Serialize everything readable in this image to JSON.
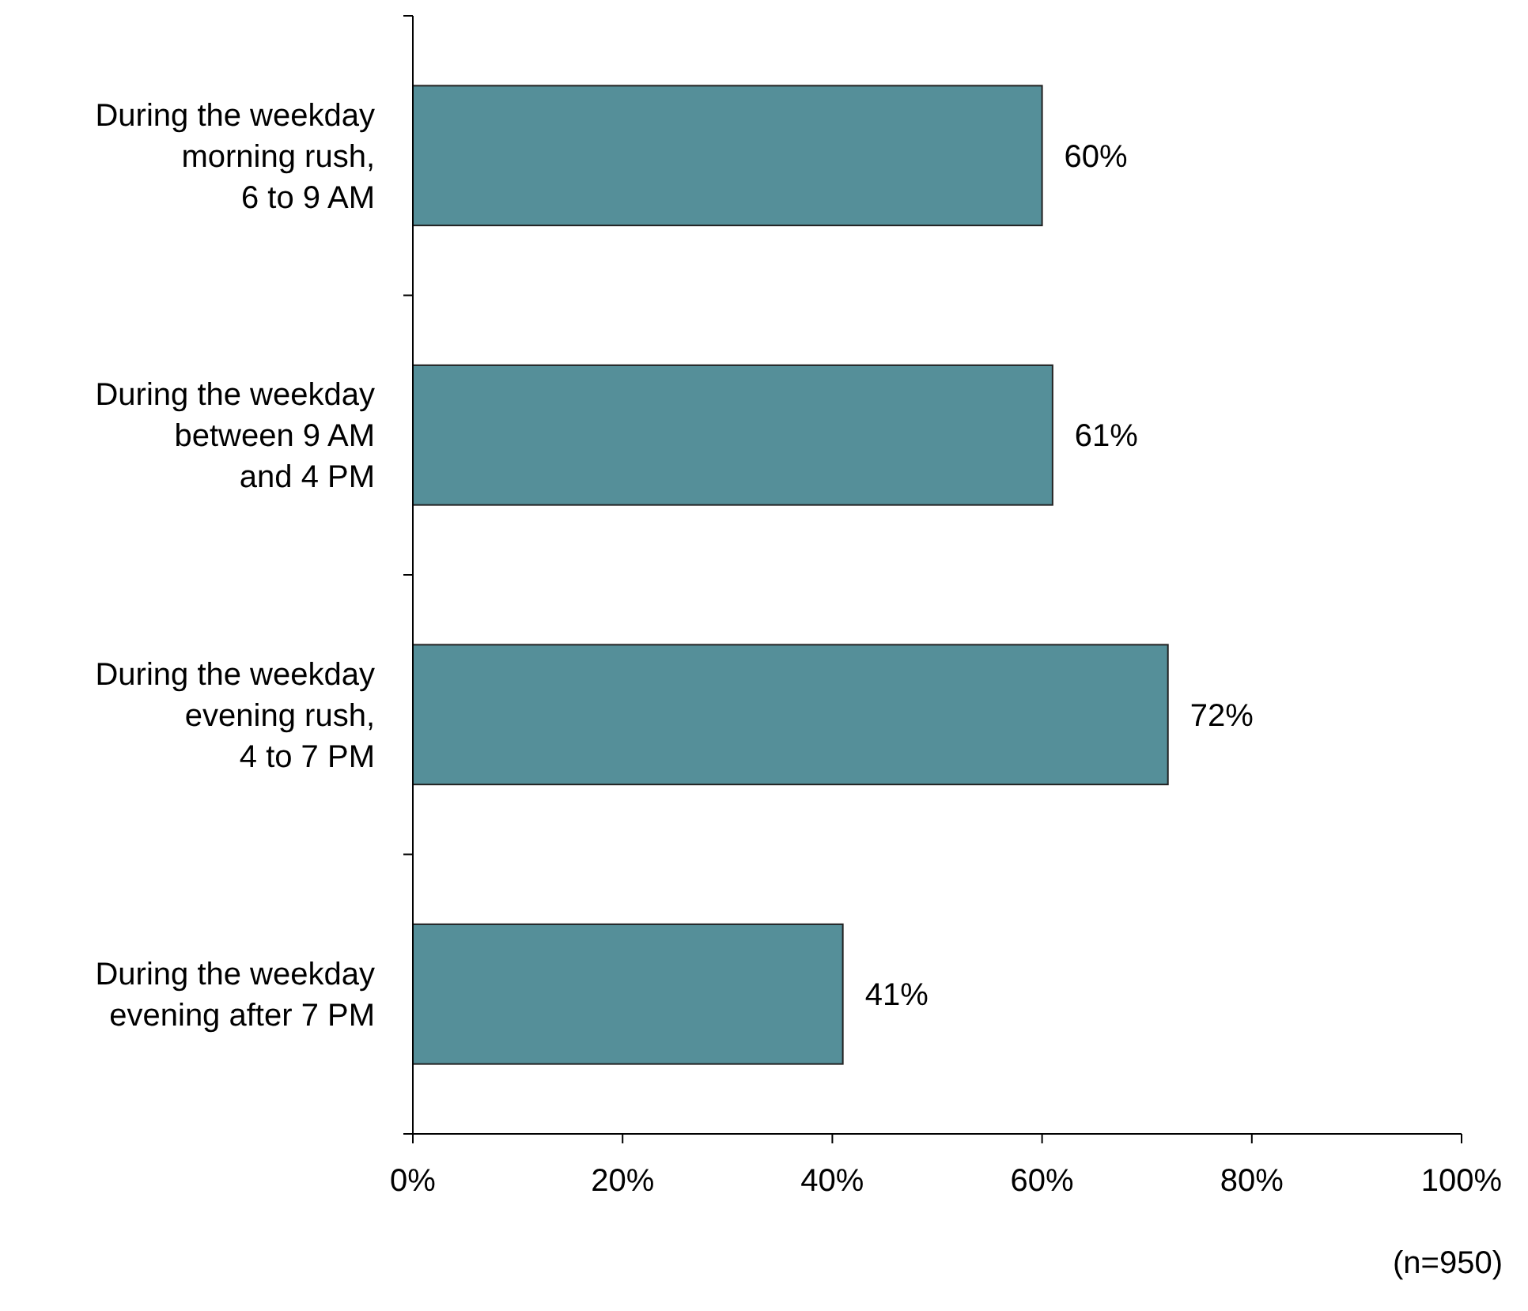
{
  "chart_data": {
    "type": "bar",
    "orientation": "horizontal",
    "categories": [
      "During the weekday\nmorning rush,\n6 to 9 AM",
      "During the weekday\nbetween 9 AM\nand 4 PM",
      "During the weekday\nevening rush,\n4 to 7 PM",
      "During the weekday\nevening after 7 PM"
    ],
    "values": [
      60,
      61,
      72,
      41
    ],
    "value_labels": [
      "60%",
      "61%",
      "72%",
      "41%"
    ],
    "color": "#558f99",
    "xlim": [
      0,
      100
    ],
    "xticks": [
      {
        "value": 0,
        "label": "0%"
      },
      {
        "value": 20,
        "label": "20%"
      },
      {
        "value": 40,
        "label": "40%"
      },
      {
        "value": 60,
        "label": "60%"
      },
      {
        "value": 80,
        "label": "80%"
      },
      {
        "value": 100,
        "label": "100%"
      }
    ],
    "grid": false,
    "annotations": [
      "(n=950)"
    ]
  }
}
